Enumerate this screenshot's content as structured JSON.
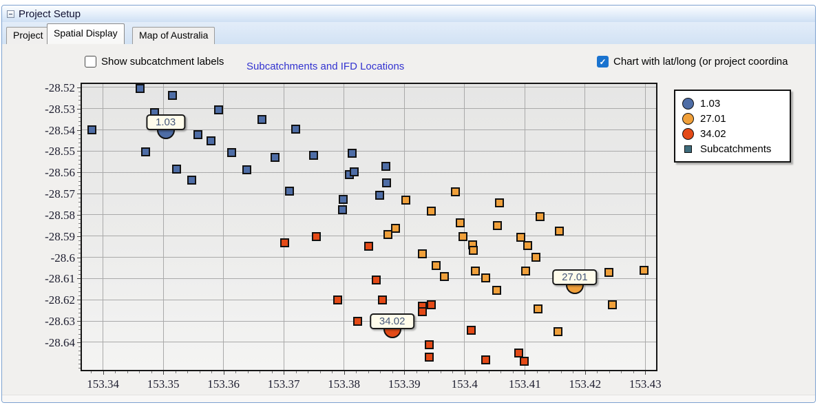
{
  "window": {
    "title": "Project Setup"
  },
  "tabs": [
    {
      "label": "Project",
      "active": false
    },
    {
      "label": "Spatial Display",
      "active": true
    },
    {
      "label": "Map of Australia",
      "active": false
    }
  ],
  "controls": {
    "show_labels_checkbox": {
      "label": "Show subcatchment labels",
      "checked": false
    },
    "latlong_checkbox": {
      "label": "Chart with lat/long (or project coordina",
      "checked": true
    }
  },
  "chart_data": {
    "type": "scatter",
    "title": "Subcatchments and IFD Locations",
    "title_color": "#3232d0",
    "xlabel": "",
    "ylabel": "",
    "xlim": [
      153.3365,
      153.4318
    ],
    "ylim": [
      -28.653,
      -28.5184
    ],
    "x_ticks": [
      153.34,
      153.35,
      153.36,
      153.37,
      153.38,
      153.39,
      153.4,
      153.41,
      153.42,
      153.43
    ],
    "x_tick_labels": [
      "153.34",
      "153.35",
      "153.36",
      "153.37",
      "153.38",
      "153.39",
      "153.4",
      "153.41",
      "153.42",
      "153.43"
    ],
    "y_ticks": [
      -28.52,
      -28.53,
      -28.54,
      -28.55,
      -28.56,
      -28.57,
      -28.58,
      -28.59,
      -28.6,
      -28.61,
      -28.62,
      -28.63,
      -28.64
    ],
    "y_tick_labels": [
      "-28.52",
      "-28.53",
      "-28.54",
      "-28.55",
      "-28.56",
      "-28.57",
      "-28.58",
      "-28.59",
      "-28.6",
      "-28.61",
      "-28.62",
      "-28.63",
      "-28.64"
    ],
    "minor_tick_step": 0.002,
    "grid": true,
    "colors": {
      "blue": "#4e6da6",
      "orange": "#f0a03a",
      "red": "#e44a17",
      "legend_square": "#3e6c7c"
    },
    "legend": {
      "position": "outside-top-right",
      "entries": [
        {
          "label": "1.03",
          "marker": "circle",
          "color_key": "blue"
        },
        {
          "label": "27.01",
          "marker": "circle",
          "color_key": "orange"
        },
        {
          "label": "34.02",
          "marker": "circle",
          "color_key": "red"
        },
        {
          "label": "Subcatchments",
          "marker": "square",
          "color_key": "legend_square"
        }
      ]
    },
    "ifd_locations": [
      {
        "label": "1.03",
        "x": 153.3504,
        "y": -28.5401,
        "color_key": "blue"
      },
      {
        "label": "27.01",
        "x": 153.4183,
        "y": -28.6131,
        "color_key": "orange"
      },
      {
        "label": "34.02",
        "x": 153.388,
        "y": -28.6339,
        "color_key": "red"
      }
    ],
    "series": [
      {
        "name": "Subcatchments (group 1.03)",
        "marker": "square",
        "color_key": "blue",
        "points": [
          [
            153.3461,
            -28.5206
          ],
          [
            153.3515,
            -28.5236
          ],
          [
            153.3486,
            -28.532
          ],
          [
            153.3592,
            -28.5307
          ],
          [
            153.3664,
            -28.5352
          ],
          [
            153.3381,
            -28.5401
          ],
          [
            153.372,
            -28.5398
          ],
          [
            153.3557,
            -28.5424
          ],
          [
            153.3579,
            -28.5453
          ],
          [
            153.3471,
            -28.5502
          ],
          [
            153.3613,
            -28.5508
          ],
          [
            153.3686,
            -28.5531
          ],
          [
            153.375,
            -28.5521
          ],
          [
            153.3813,
            -28.5511
          ],
          [
            153.3522,
            -28.5586
          ],
          [
            153.3639,
            -28.5589
          ],
          [
            153.3809,
            -28.5609
          ],
          [
            153.3817,
            -28.5596
          ],
          [
            153.387,
            -28.5573
          ],
          [
            153.3547,
            -28.5635
          ],
          [
            153.3871,
            -28.5648
          ],
          [
            153.3709,
            -28.5687
          ],
          [
            153.3859,
            -28.5709
          ],
          [
            153.3799,
            -28.5726
          ],
          [
            153.3798,
            -28.5777
          ]
        ]
      },
      {
        "name": "Subcatchments (group 27.01)",
        "marker": "square",
        "color_key": "orange",
        "points": [
          [
            153.3985,
            -28.5693
          ],
          [
            153.3903,
            -28.5732
          ],
          [
            153.4058,
            -28.5745
          ],
          [
            153.3945,
            -28.5784
          ],
          [
            153.3885,
            -28.5865
          ],
          [
            153.3873,
            -28.5894
          ],
          [
            153.3993,
            -28.5836
          ],
          [
            153.4055,
            -28.5849
          ],
          [
            153.4126,
            -28.5807
          ],
          [
            153.3997,
            -28.5904
          ],
          [
            153.4093,
            -28.5907
          ],
          [
            153.4158,
            -28.5875
          ],
          [
            153.4014,
            -28.594
          ],
          [
            153.4015,
            -28.5966
          ],
          [
            153.4105,
            -28.5943
          ],
          [
            153.393,
            -28.5985
          ],
          [
            153.4119,
            -28.6001
          ],
          [
            153.3953,
            -28.604
          ],
          [
            153.3967,
            -28.6089
          ],
          [
            153.4018,
            -28.6066
          ],
          [
            153.4035,
            -28.6098
          ],
          [
            153.4102,
            -28.6066
          ],
          [
            153.4054,
            -28.6154
          ],
          [
            153.424,
            -28.6072
          ],
          [
            153.4298,
            -28.606
          ],
          [
            153.4122,
            -28.6244
          ],
          [
            153.4245,
            -28.6222
          ],
          [
            153.4155,
            -28.6351
          ]
        ]
      },
      {
        "name": "Subcatchments (group 34.02)",
        "marker": "square",
        "color_key": "red",
        "points": [
          [
            153.3701,
            -28.593
          ],
          [
            153.3754,
            -28.5904
          ],
          [
            153.3841,
            -28.5949
          ],
          [
            153.3853,
            -28.6108
          ],
          [
            153.379,
            -28.6202
          ],
          [
            153.3864,
            -28.6202
          ],
          [
            153.393,
            -28.6231
          ],
          [
            153.393,
            -28.6257
          ],
          [
            153.3945,
            -28.6225
          ],
          [
            153.3823,
            -28.63
          ],
          [
            153.4011,
            -28.6345
          ],
          [
            153.3942,
            -28.641
          ],
          [
            153.3942,
            -28.6471
          ],
          [
            153.4035,
            -28.6484
          ],
          [
            153.409,
            -28.6449
          ],
          [
            153.4099,
            -28.6488
          ]
        ]
      }
    ]
  }
}
